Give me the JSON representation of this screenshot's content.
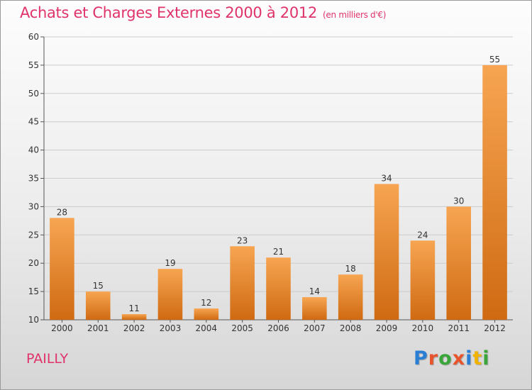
{
  "colors": {
    "title": "#e0336a",
    "bar_top": "#f7a552",
    "bar_bottom": "#cf6a12",
    "grid": "#cccccc",
    "axis": "#555555"
  },
  "footer": {
    "place": "PAILLY"
  },
  "logo": {
    "letters": [
      "P",
      "r",
      "o",
      "x",
      "i",
      "t",
      "i"
    ],
    "colors": [
      "#2a7fd4",
      "#e8542c",
      "#3aa63a",
      "#e8542c",
      "#2a7fd4",
      "#f0b400",
      "#3aa63a"
    ]
  },
  "chart_data": {
    "type": "bar",
    "title": "Achats et Charges Externes 2000 à 2012",
    "unit": "(en milliers d'€)",
    "categories": [
      "2000",
      "2001",
      "2002",
      "2003",
      "2004",
      "2005",
      "2006",
      "2007",
      "2008",
      "2009",
      "2010",
      "2011",
      "2012"
    ],
    "values": [
      28,
      15,
      11,
      19,
      12,
      23,
      21,
      14,
      18,
      34,
      24,
      30,
      55
    ],
    "ylim": [
      10,
      60
    ],
    "yticks": [
      10,
      15,
      20,
      25,
      30,
      35,
      40,
      45,
      50,
      55,
      60
    ],
    "grid": true,
    "xlabel": "",
    "ylabel": ""
  }
}
